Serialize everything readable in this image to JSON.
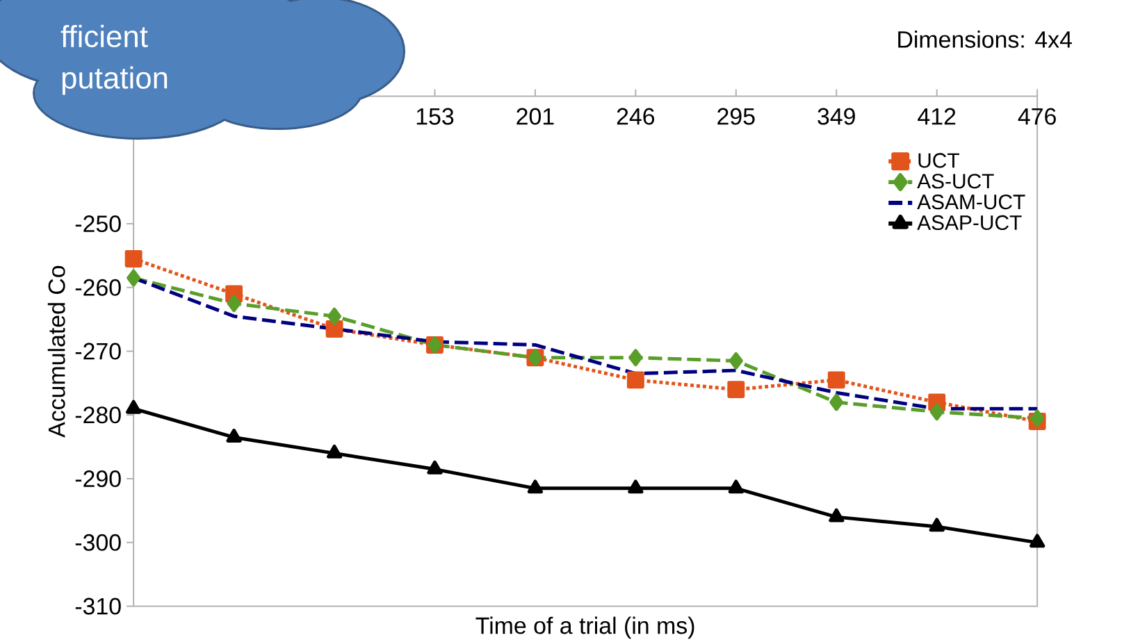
{
  "chart_data": {
    "type": "line",
    "subtitle": "Dimensions: 4x4",
    "xlabel": "Time of a trial (in ms)",
    "ylabel": "Accumulated Co",
    "annotations": [
      "fficient",
      "putation"
    ],
    "categories": [
      null,
      null,
      null,
      "153",
      "201",
      "246",
      "295",
      "349",
      "412",
      "476"
    ],
    "ylim": [
      -310,
      -230
    ],
    "yticks": [
      -310,
      -300,
      -290,
      -280,
      -270,
      -260,
      -250
    ],
    "tick_labels": "xy",
    "legend": "top right",
    "grid": false,
    "series": [
      {
        "name": "UCT",
        "color": "#e2541b",
        "marker": "square",
        "line_style": "dotted",
        "values": [
          -255.5,
          -261,
          -266.5,
          -269,
          -271,
          -274.5,
          -276,
          -274.5,
          -278,
          -281
        ]
      },
      {
        "name": "AS-UCT",
        "color": "#5a9e2a",
        "marker": "diamond",
        "line_style": "dashed",
        "values": [
          -258.5,
          -262.5,
          -264.5,
          -269,
          -271,
          -271,
          -271.5,
          -278,
          -279.5,
          -280.5
        ]
      },
      {
        "name": "ASAM-UCT",
        "color": "#000080",
        "marker": "none",
        "line_style": "dashed",
        "values": [
          -258.5,
          -264.5,
          -266.5,
          -268.5,
          -269,
          -273.5,
          -273,
          -276.5,
          -279,
          -279
        ]
      },
      {
        "name": "ASAP-UCT",
        "color": "#000000",
        "marker": "triangle",
        "line_style": "solid",
        "values": [
          -279,
          -283.5,
          -286,
          -288.5,
          -291.5,
          -291.5,
          -291.5,
          -296,
          -297.5,
          -300
        ]
      }
    ]
  }
}
